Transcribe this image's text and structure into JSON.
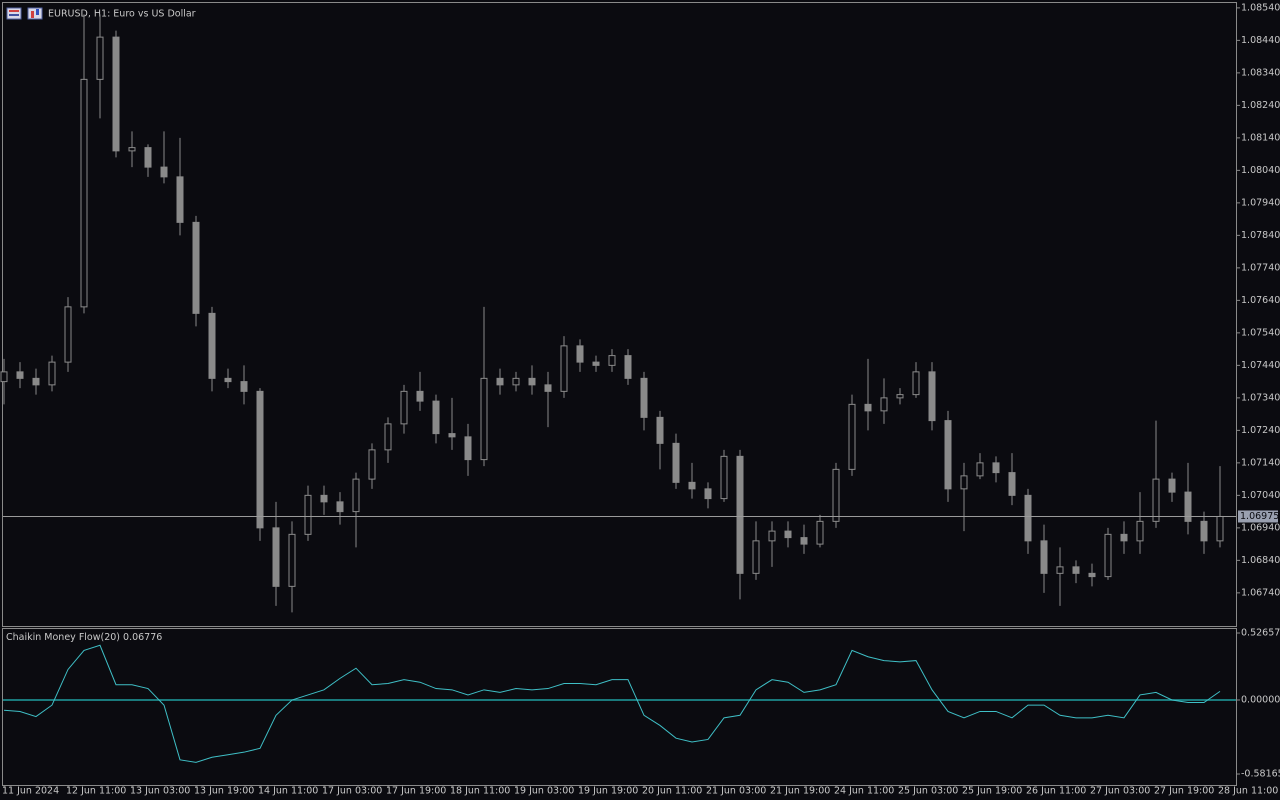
{
  "chart_data": [
    {
      "type": "candlestick",
      "title": "EURUSD, H1:  Euro vs US Dollar",
      "color": "#8a8a8a",
      "categories": [
        "11 Jun 2024",
        null,
        null,
        null,
        "12 Jun 11:00",
        null,
        null,
        null,
        "13 Jun 03:00",
        null,
        null,
        null,
        "13 Jun 19:00",
        null,
        null,
        null,
        "14 Jun 11:00",
        null,
        null,
        null,
        "17 Jun 03:00",
        null,
        null,
        null,
        "17 Jun 19:00",
        null,
        null,
        null,
        "18 Jun 11:00",
        null,
        null,
        null,
        "19 Jun 03:00",
        null,
        null,
        null,
        "19 Jun 19:00",
        null,
        null,
        null,
        "20 Jun 11:00",
        null,
        null,
        null,
        "21 Jun 03:00",
        null,
        null,
        null,
        "21 Jun 19:00",
        null,
        null,
        null,
        "24 Jun 11:00",
        null,
        null,
        null,
        "25 Jun 03:00",
        null,
        null,
        null,
        "25 Jun 19:00",
        null,
        null,
        null,
        "26 Jun 11:00",
        null,
        null,
        null,
        "27 Jun 03:00",
        null,
        null,
        null,
        "27 Jun 19:00",
        null,
        null,
        null,
        "28 Jun 11:00"
      ],
      "open": [
        1.0739,
        1.0742,
        1.074,
        1.0738,
        1.0745,
        1.0762,
        1.0832,
        1.0845,
        1.081,
        1.0811,
        1.0805,
        1.0802,
        1.0788,
        1.076,
        1.074,
        1.0739,
        1.0736,
        1.0694,
        1.0676,
        1.0692,
        1.0704,
        1.0702,
        1.0699,
        1.0709,
        1.0718,
        1.0726,
        1.0736,
        1.0733,
        1.0723,
        1.0722,
        1.0715,
        1.074,
        1.0738,
        1.074,
        1.0738,
        1.0736,
        1.075,
        1.0745,
        1.0744,
        1.0747,
        1.074,
        1.0728,
        1.072,
        1.0708,
        1.0706,
        1.0703,
        1.0716,
        1.068,
        1.069,
        1.0693,
        1.0691,
        1.0689,
        1.0696,
        1.0712,
        1.0732,
        1.073,
        1.0734,
        1.0735,
        1.0742,
        1.0727,
        1.0706,
        1.071,
        1.0714,
        1.0711,
        1.0704,
        1.069,
        1.068,
        1.0682,
        1.068,
        1.0679,
        1.0692,
        1.069,
        1.0696,
        1.0709,
        1.0705,
        1.0696,
        1.069
      ],
      "high": [
        1.0746,
        1.0745,
        1.0743,
        1.0747,
        1.0765,
        1.0852,
        1.0852,
        1.0847,
        1.0816,
        1.0812,
        1.0816,
        1.0814,
        1.079,
        1.0762,
        1.0743,
        1.0744,
        1.0737,
        1.0702,
        1.0696,
        1.0707,
        1.0707,
        1.0705,
        1.0711,
        1.072,
        1.0728,
        1.0738,
        1.0742,
        1.0735,
        1.0734,
        1.0726,
        1.0762,
        1.0743,
        1.0742,
        1.0744,
        1.0742,
        1.0753,
        1.0752,
        1.0747,
        1.0749,
        1.0749,
        1.0742,
        1.073,
        1.0723,
        1.0714,
        1.0708,
        1.0718,
        1.0718,
        1.0696,
        1.0696,
        1.0696,
        1.0695,
        1.0698,
        1.0714,
        1.0735,
        1.0746,
        1.074,
        1.0737,
        1.0745,
        1.0745,
        1.073,
        1.0714,
        1.0717,
        1.0716,
        1.0717,
        1.0706,
        1.0695,
        1.0688,
        1.0684,
        1.0683,
        1.0694,
        1.0696,
        1.0705,
        1.0727,
        1.0711,
        1.0714,
        1.0699,
        1.0713
      ],
      "low": [
        1.0732,
        1.0737,
        1.0735,
        1.0736,
        1.0742,
        1.076,
        1.082,
        1.0808,
        1.0805,
        1.0802,
        1.08,
        1.0784,
        1.0756,
        1.0736,
        1.0737,
        1.0732,
        1.069,
        1.067,
        1.0668,
        1.069,
        1.0698,
        1.0695,
        1.0688,
        1.0706,
        1.0714,
        1.0723,
        1.073,
        1.072,
        1.0718,
        1.071,
        1.0713,
        1.0735,
        1.0736,
        1.0735,
        1.0725,
        1.0734,
        1.0742,
        1.0742,
        1.0742,
        1.0738,
        1.0724,
        1.0712,
        1.0706,
        1.0703,
        1.07,
        1.0702,
        1.0672,
        1.0678,
        1.0682,
        1.0688,
        1.0686,
        1.0688,
        1.0694,
        1.071,
        1.0724,
        1.0726,
        1.0732,
        1.0734,
        1.0724,
        1.0702,
        1.0693,
        1.0709,
        1.0708,
        1.0701,
        1.0686,
        1.0674,
        1.067,
        1.0677,
        1.0676,
        1.0678,
        1.0686,
        1.0686,
        1.0694,
        1.0702,
        1.0692,
        1.0686,
        1.0688
      ],
      "close": [
        1.0742,
        1.074,
        1.0738,
        1.0745,
        1.0762,
        1.0832,
        1.0845,
        1.081,
        1.0811,
        1.0805,
        1.0802,
        1.0788,
        1.076,
        1.074,
        1.0739,
        1.0736,
        1.0694,
        1.0676,
        1.0692,
        1.0704,
        1.0702,
        1.0699,
        1.0709,
        1.0718,
        1.0726,
        1.0736,
        1.0733,
        1.0723,
        1.0722,
        1.0715,
        1.074,
        1.0738,
        1.074,
        1.0738,
        1.0736,
        1.075,
        1.0745,
        1.0744,
        1.0747,
        1.074,
        1.0728,
        1.072,
        1.0708,
        1.0706,
        1.0703,
        1.0716,
        1.068,
        1.069,
        1.0693,
        1.0691,
        1.0689,
        1.0696,
        1.0712,
        1.0732,
        1.073,
        1.0734,
        1.0735,
        1.0742,
        1.0727,
        1.0706,
        1.071,
        1.0714,
        1.0711,
        1.0704,
        1.069,
        1.068,
        1.0682,
        1.068,
        1.0679,
        1.0692,
        1.069,
        1.0696,
        1.0709,
        1.0705,
        1.0696,
        1.069,
        1.06975
      ],
      "last_price": 1.06975,
      "ylim": [
        1.06638,
        1.08555
      ],
      "yticks": [
        {
          "value": 1.0854,
          "label": "1.08540"
        },
        {
          "value": 1.0844,
          "label": "1.08440"
        },
        {
          "value": 1.0834,
          "label": "1.08340"
        },
        {
          "value": 1.0824,
          "label": "1.08240"
        },
        {
          "value": 1.0814,
          "label": "1.08140"
        },
        {
          "value": 1.0804,
          "label": "1.08040"
        },
        {
          "value": 1.0794,
          "label": "1.07940"
        },
        {
          "value": 1.0784,
          "label": "1.07840"
        },
        {
          "value": 1.0774,
          "label": "1.07740"
        },
        {
          "value": 1.0764,
          "label": "1.07640"
        },
        {
          "value": 1.0754,
          "label": "1.07540"
        },
        {
          "value": 1.0744,
          "label": "1.07440"
        },
        {
          "value": 1.0734,
          "label": "1.07340"
        },
        {
          "value": 1.0724,
          "label": "1.07240"
        },
        {
          "value": 1.0714,
          "label": "1.07140"
        },
        {
          "value": 1.0704,
          "label": "1.07040"
        },
        {
          "value": 1.0694,
          "label": "1.06940"
        },
        {
          "value": 1.0684,
          "label": "1.06840"
        },
        {
          "value": 1.0674,
          "label": "1.06740"
        }
      ]
    },
    {
      "type": "line",
      "title": "Chaikin Money Flow(20)",
      "color": "#3fbfc6",
      "level_color": "#20a0a0",
      "values": [
        -0.08,
        -0.09,
        -0.13,
        -0.04,
        0.24,
        0.39,
        0.43,
        0.12,
        0.12,
        0.09,
        -0.04,
        -0.47,
        -0.49,
        -0.45,
        -0.43,
        -0.41,
        -0.38,
        -0.12,
        0,
        0.04,
        0.08,
        0.17,
        0.25,
        0.12,
        0.13,
        0.16,
        0.14,
        0.09,
        0.08,
        0.04,
        0.08,
        0.06,
        0.09,
        0.08,
        0.09,
        0.13,
        0.13,
        0.12,
        0.16,
        0.16,
        -0.12,
        -0.2,
        -0.3,
        -0.33,
        -0.31,
        -0.14,
        -0.12,
        0.08,
        0.16,
        0.14,
        0.06,
        0.08,
        0.12,
        0.39,
        0.34,
        0.31,
        0.3,
        0.31,
        0.08,
        -0.09,
        -0.14,
        -0.09,
        -0.09,
        -0.14,
        -0.04,
        -0.04,
        -0.12,
        -0.14,
        -0.14,
        -0.12,
        -0.14,
        0.04,
        0.06,
        0,
        -0.02,
        -0.02,
        0.06776
      ],
      "level": 0,
      "ylim": [
        -0.668,
        0.566
      ],
      "yticks": [
        0.52657,
        {
          "value": 0,
          "label": "0.00000"
        },
        -0.58165
      ]
    }
  ]
}
